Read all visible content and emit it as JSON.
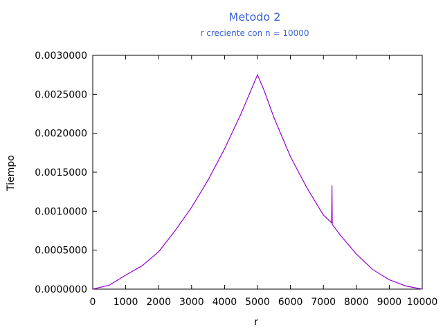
{
  "chart_data": {
    "type": "line",
    "title": "Metodo 2",
    "subtitle": "r creciente con n = 10000",
    "xlabel": "r",
    "ylabel": "Tiempo",
    "xlim": [
      0,
      10000
    ],
    "ylim": [
      0,
      0.003
    ],
    "x_ticks": [
      "0",
      "1000",
      "2000",
      "3000",
      "4000",
      "5000",
      "6000",
      "7000",
      "8000",
      "9000",
      "10000"
    ],
    "y_ticks": [
      "0.0000000",
      "0.0005000",
      "0.0010000",
      "0.0015000",
      "0.0020000",
      "0.0025000",
      "0.0030000"
    ],
    "grid": false,
    "title_color": "#3b63d3",
    "series": [
      {
        "color": "#9400d3",
        "x": [
          0,
          500,
          1000,
          1500,
          2000,
          2500,
          3000,
          3500,
          4000,
          4500,
          4800,
          5000,
          5200,
          5500,
          6000,
          6500,
          7000,
          7250,
          7260,
          7270,
          7500,
          8000,
          8500,
          9000,
          9500,
          10000
        ],
        "y": [
          0.0,
          5e-05,
          0.00018,
          0.0003,
          0.00048,
          0.00075,
          0.00105,
          0.0014,
          0.0018,
          0.00225,
          0.00255,
          0.00275,
          0.00255,
          0.0022,
          0.0017,
          0.0013,
          0.00095,
          0.00085,
          0.00133,
          0.00083,
          0.0007,
          0.00045,
          0.00025,
          0.00012,
          4e-05,
          0.0
        ]
      }
    ]
  }
}
